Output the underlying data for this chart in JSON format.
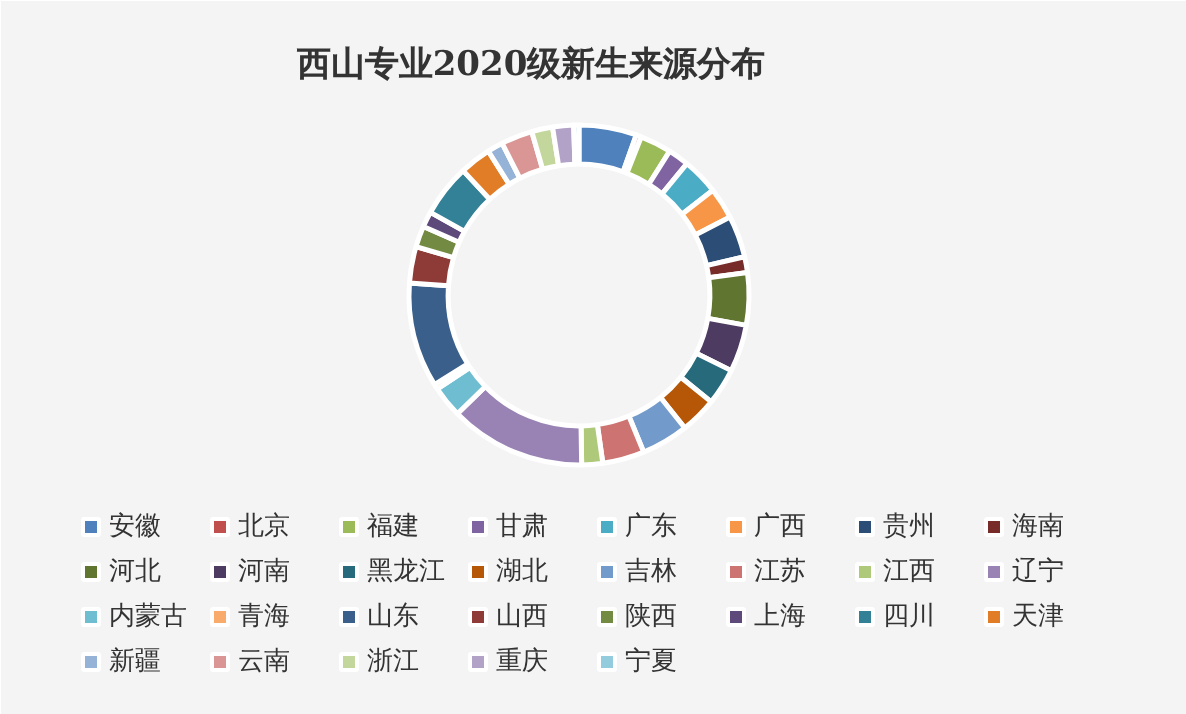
{
  "chart_data": {
    "type": "donut",
    "title": "西山专业2020级新生来源分布",
    "categories": [
      "安徽",
      "北京",
      "福建",
      "甘肃",
      "广东",
      "广西",
      "贵州",
      "海南",
      "河北",
      "河南",
      "黑龙江",
      "湖北",
      "吉林",
      "江苏",
      "江西",
      "辽宁",
      "内蒙古",
      "青海",
      "山东",
      "山西",
      "陕西",
      "上海",
      "四川",
      "天津",
      "新疆",
      "云南",
      "浙江",
      "重庆",
      "宁夏"
    ],
    "values": [
      5.5,
      0.5,
      3,
      2,
      3.5,
      3,
      4,
      1.5,
      5,
      4.5,
      3.5,
      3.5,
      4.5,
      4,
      2,
      13,
      3,
      0.5,
      10,
      3.5,
      2,
      1.5,
      5,
      3,
      1.5,
      3,
      2,
      2,
      0.5
    ],
    "colors": [
      "#4f81bd",
      "#c0504d",
      "#9bbb59",
      "#8064a2",
      "#4bacc6",
      "#f79646",
      "#2c4d75",
      "#772c2a",
      "#5f7530",
      "#4d3b62",
      "#276a7c",
      "#b65708",
      "#729aca",
      "#cd7371",
      "#afc97a",
      "#9983b5",
      "#6fbdd1",
      "#f9ab6b",
      "#3a5f8b",
      "#8e3b38",
      "#728a42",
      "#5e4a7a",
      "#338196",
      "#e17d26",
      "#95b3d7",
      "#d99694",
      "#c3d69b",
      "#b3a2c7",
      "#93cddd"
    ],
    "legend": "bottom"
  }
}
